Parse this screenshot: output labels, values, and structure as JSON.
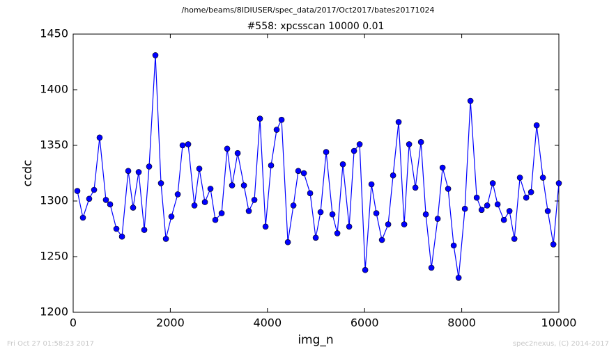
{
  "chart_data": {
    "type": "line",
    "suptitle": "/home/beams/8IDIUSER/spec_data/2017/Oct2017/bates20171024",
    "title": "#558: xpcsscan 10000 0.01",
    "x_label": "img_n",
    "y_label": "ccdc",
    "annotations": [
      "Fri Oct 27 01:58:23 2017",
      "spec2nexus, (C) 2014-2017"
    ],
    "color": "#0000ff",
    "markers": true,
    "grid": false,
    "x": [
      86,
      201,
      330,
      431,
      545,
      674,
      761,
      890,
      1005,
      1134,
      1234,
      1349,
      1464,
      1564,
      1693,
      1808,
      1909,
      2023,
      2153,
      2253,
      2368,
      2497,
      2597,
      2712,
      2827,
      2927,
      3057,
      3171,
      3272,
      3387,
      3516,
      3616,
      3731,
      3846,
      3961,
      4075,
      4190,
      4291,
      4420,
      4535,
      4635,
      4750,
      4879,
      4994,
      5094,
      5209,
      5338,
      5439,
      5553,
      5683,
      5783,
      5898,
      6013,
      6142,
      6242,
      6357,
      6486,
      6587,
      6701,
      6816,
      6917,
      7046,
      7161,
      7261,
      7376,
      7505,
      7606,
      7720,
      7835,
      7936,
      8065,
      8180,
      8309,
      8409,
      8524,
      8639,
      8739,
      8868,
      8983,
      9084,
      9198,
      9328,
      9428,
      9543,
      9672,
      9772,
      9887,
      10000
    ],
    "values": [
      1309,
      1285,
      1302,
      1310,
      1357,
      1301,
      1297,
      1275,
      1268,
      1327,
      1294,
      1326,
      1274,
      1331,
      1431,
      1316,
      1266,
      1286,
      1306,
      1350,
      1351,
      1296,
      1329,
      1299,
      1311,
      1283,
      1289,
      1347,
      1314,
      1343,
      1314,
      1291,
      1301,
      1374,
      1277,
      1332,
      1364,
      1373,
      1263,
      1296,
      1327,
      1325,
      1307,
      1267,
      1290,
      1344,
      1288,
      1271,
      1333,
      1277,
      1345,
      1351,
      1238,
      1315,
      1289,
      1265,
      1279,
      1323,
      1371,
      1279,
      1351,
      1312,
      1353,
      1288,
      1240,
      1284,
      1330,
      1311,
      1260,
      1231,
      1293,
      1390,
      1303,
      1292,
      1296,
      1316,
      1297,
      1283,
      1291,
      1266,
      1321,
      1303,
      1308,
      1368,
      1321,
      1291,
      1261,
      1316
    ],
    "xlim": [
      0,
      10000
    ],
    "xticks": [
      0,
      2000,
      4000,
      6000,
      8000,
      10000
    ],
    "ylim": [
      1200,
      1450
    ],
    "yticks": [
      1200,
      1250,
      1300,
      1350,
      1400,
      1450
    ]
  }
}
